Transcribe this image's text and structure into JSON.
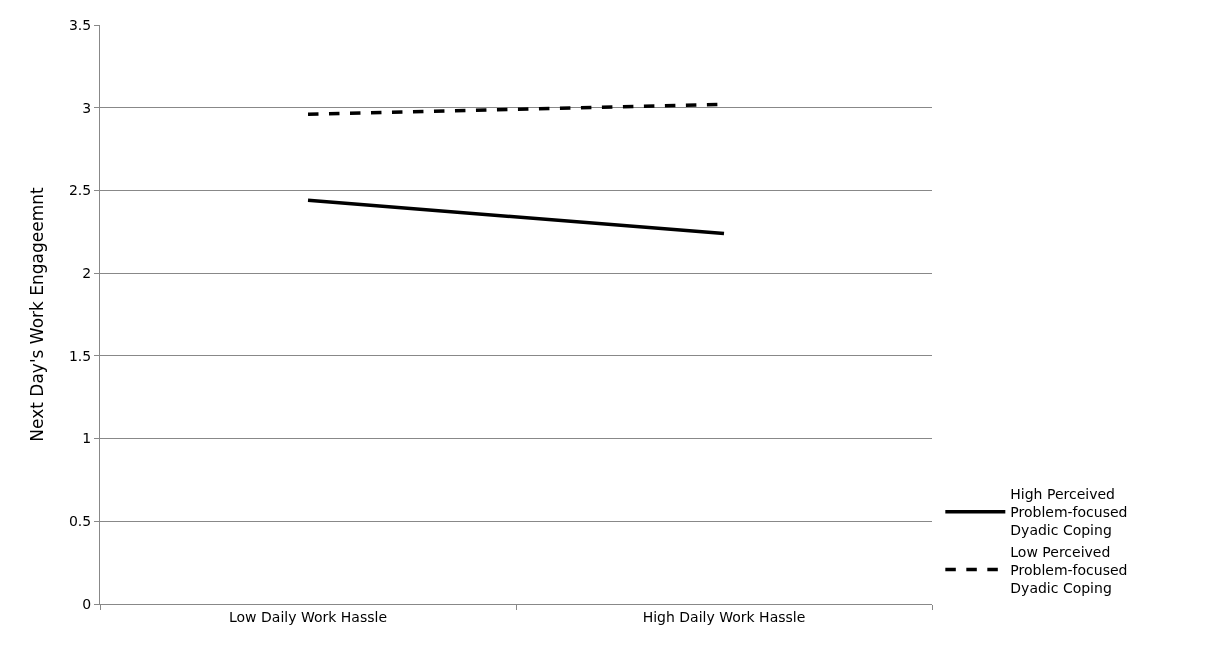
{
  "chart_data": {
    "type": "line",
    "ylabel": "Next Day's Work Engageemnt",
    "categories": [
      "Low Daily Work Hassle",
      "High Daily Work Hassle"
    ],
    "series": [
      {
        "name": "High Perceived Problem-focused Dyadic Coping",
        "color": "#000000",
        "values": [
          2.44,
          2.24
        ],
        "line_style": "solid"
      },
      {
        "name": "Low Perceived Problem-focused Dyadic Coping",
        "color": "#000000",
        "values": [
          2.96,
          3.02
        ],
        "line_style": "dashed"
      }
    ],
    "ylim": [
      0,
      3.5
    ],
    "yticks": [
      0,
      0.5,
      1,
      1.5,
      2,
      2.5,
      3,
      3.5
    ],
    "grid": "y",
    "legend": "right",
    "marker": "none"
  }
}
